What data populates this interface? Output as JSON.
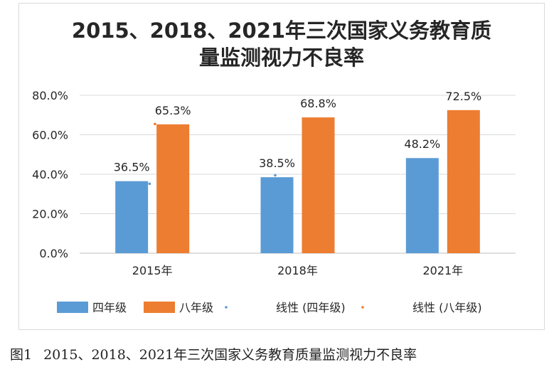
{
  "chart_data": {
    "type": "bar",
    "title_lines": [
      "2015、2018、2021年三次国家义务教育质",
      "量监测视力不良率"
    ],
    "categories": [
      "2015年",
      "2018年",
      "2021年"
    ],
    "series": [
      {
        "name": "四年级",
        "values": [
          36.5,
          38.5,
          48.2
        ],
        "labels": [
          "36.5%",
          "38.5%",
          "48.2%"
        ],
        "color": "#5b9bd5"
      },
      {
        "name": "八年级",
        "values": [
          65.3,
          68.8,
          72.5
        ],
        "labels": [
          "65.3%",
          "68.8%",
          "72.5%"
        ],
        "color": "#ed7d31"
      }
    ],
    "trend_series": [
      {
        "name": "线性 (四年级)",
        "color": "#5b9bd5",
        "values": [
          35.2,
          39.5,
          43.5
        ]
      },
      {
        "name": "线性 (八年级)",
        "color": "#ed7d31",
        "values": [
          65.5,
          68.0,
          70.5
        ]
      }
    ],
    "y_ticks": [
      "0.0%",
      "20.0%",
      "40.0%",
      "60.0%",
      "80.0%"
    ],
    "ylim": [
      0,
      80
    ],
    "grid": true,
    "legend_position": "bottom",
    "xlabel": "",
    "ylabel": ""
  },
  "caption": {
    "figure_label": "图1",
    "text": "2015、2018、2021年三次国家义务教育质量监测视力不良率"
  }
}
